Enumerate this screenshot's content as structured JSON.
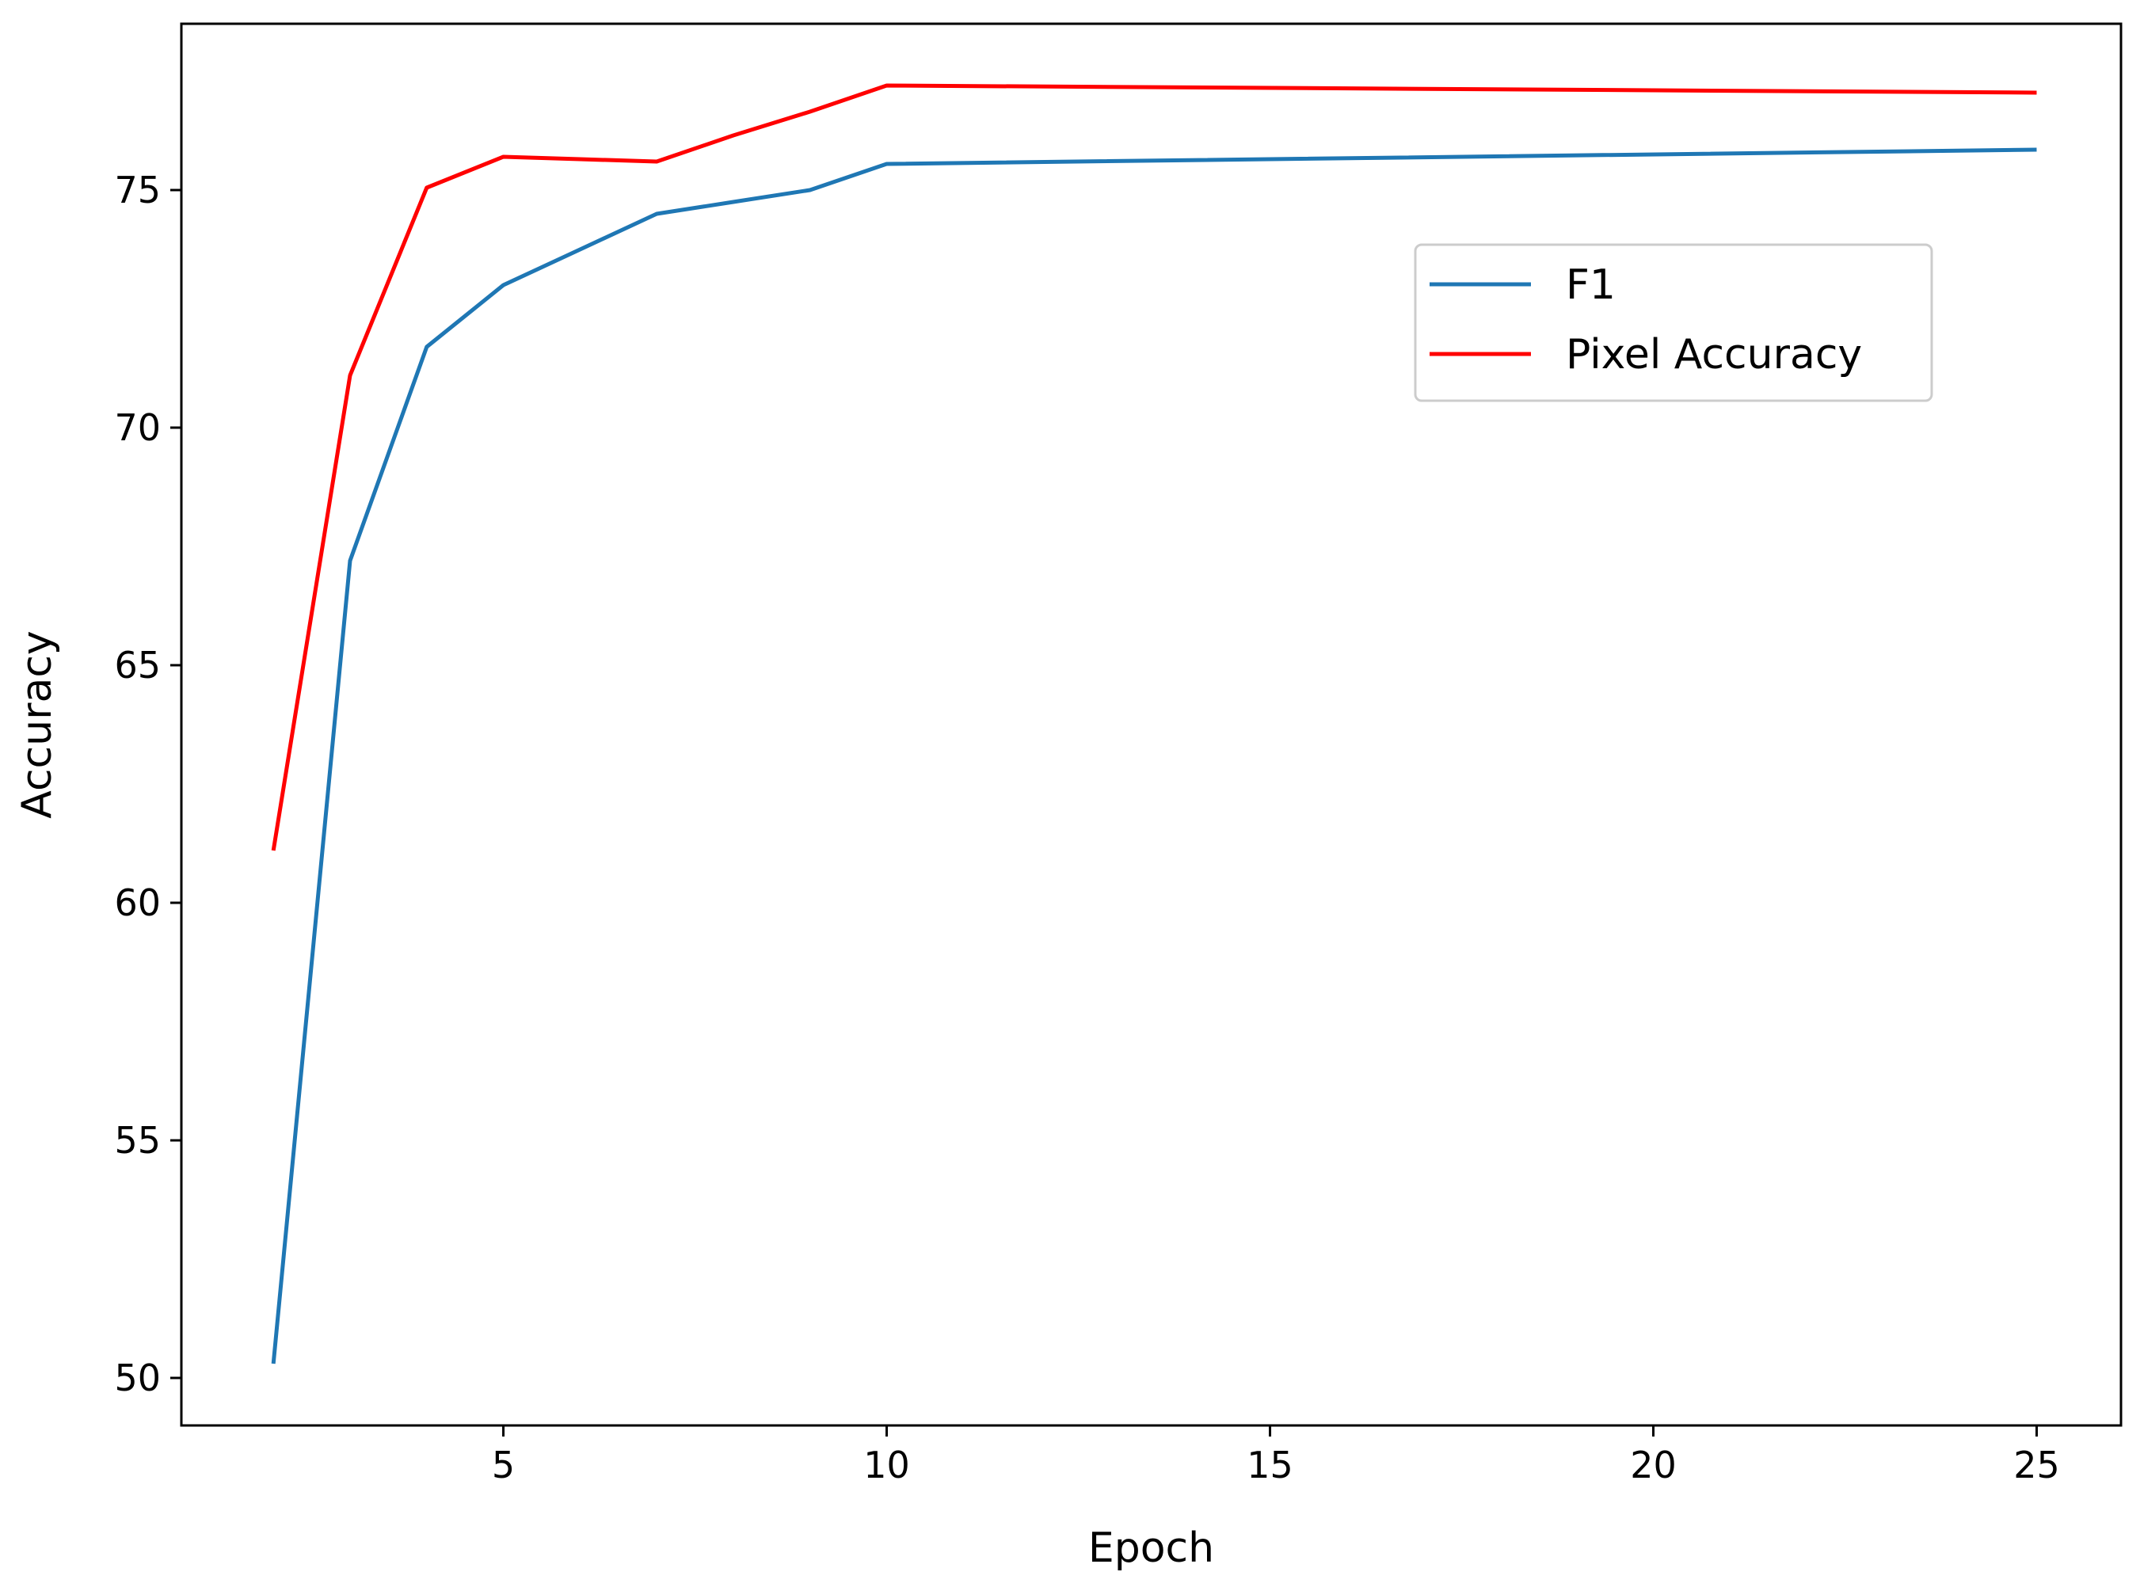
{
  "chart_data": {
    "type": "line",
    "title": "",
    "xlabel": "Epoch",
    "ylabel": "Accuracy",
    "xlim": [
      0.8,
      26.1
    ],
    "ylim": [
      49.0,
      78.5
    ],
    "xticks": [
      5,
      10,
      15,
      20,
      25
    ],
    "yticks": [
      50,
      55,
      60,
      65,
      70,
      75
    ],
    "grid": false,
    "legend_position": "upper-right",
    "series": [
      {
        "name": "F1",
        "color": "#1f77b4",
        "points": [
          {
            "x": 2,
            "y": 50.3
          },
          {
            "x": 3,
            "y": 67.2
          },
          {
            "x": 4,
            "y": 71.7
          },
          {
            "x": 5,
            "y": 73.0
          },
          {
            "x": 6,
            "y": 73.75
          },
          {
            "x": 7,
            "y": 74.5
          },
          {
            "x": 8,
            "y": 74.75
          },
          {
            "x": 9,
            "y": 75.0
          },
          {
            "x": 10,
            "y": 75.55
          },
          {
            "x": 25,
            "y": 75.85
          }
        ]
      },
      {
        "name": "Pixel Accuracy",
        "color": "#ff0000",
        "points": [
          {
            "x": 2,
            "y": 61.1
          },
          {
            "x": 3,
            "y": 71.1
          },
          {
            "x": 4,
            "y": 75.05
          },
          {
            "x": 5,
            "y": 75.7
          },
          {
            "x": 6,
            "y": 75.65
          },
          {
            "x": 7,
            "y": 75.6
          },
          {
            "x": 8,
            "y": 76.15
          },
          {
            "x": 9,
            "y": 76.65
          },
          {
            "x": 10,
            "y": 77.2
          },
          {
            "x": 25,
            "y": 77.05
          }
        ]
      }
    ]
  }
}
